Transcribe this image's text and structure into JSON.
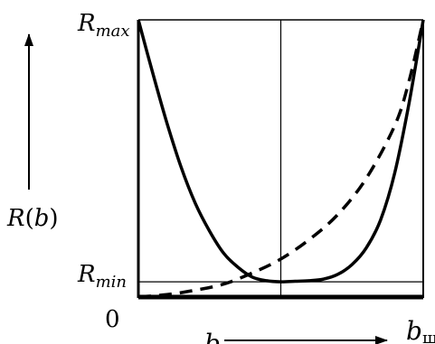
{
  "chart_data": {
    "type": "line",
    "title": "",
    "xlabel": "b",
    "ylabel": "R(b)",
    "x_end_label": "b",
    "x_end_subscript": "ш",
    "origin_label": "0",
    "y_tick_labels": [
      {
        "main": "R",
        "sub": "max"
      },
      {
        "main": "R",
        "sub": "min"
      }
    ],
    "xlim": [
      0,
      1
    ],
    "ylim": [
      0,
      1
    ],
    "r_min": 0.058,
    "r_max": 1.0,
    "center_x": 0.5,
    "grid": false,
    "legend": "none",
    "series": [
      {
        "style": "solid",
        "x": [
          0.0,
          0.05,
          0.1,
          0.15,
          0.2,
          0.25,
          0.3,
          0.35,
          0.4,
          0.45,
          0.5,
          0.55,
          0.6,
          0.65,
          0.7,
          0.75,
          0.8,
          0.85,
          0.9,
          0.95,
          1.0
        ],
        "y": [
          1.0,
          0.81,
          0.63,
          0.47,
          0.34,
          0.24,
          0.16,
          0.11,
          0.075,
          0.062,
          0.058,
          0.06,
          0.062,
          0.068,
          0.085,
          0.12,
          0.18,
          0.28,
          0.45,
          0.7,
          1.0
        ]
      },
      {
        "style": "dashed",
        "x": [
          0.0,
          0.1,
          0.2,
          0.3,
          0.4,
          0.5,
          0.6,
          0.7,
          0.8,
          0.9,
          0.95,
          1.0
        ],
        "y": [
          0.004,
          0.012,
          0.028,
          0.05,
          0.09,
          0.14,
          0.21,
          0.3,
          0.43,
          0.62,
          0.78,
          1.0
        ]
      }
    ]
  },
  "colors": {
    "ink": "#000000",
    "background": "#ffffff"
  }
}
